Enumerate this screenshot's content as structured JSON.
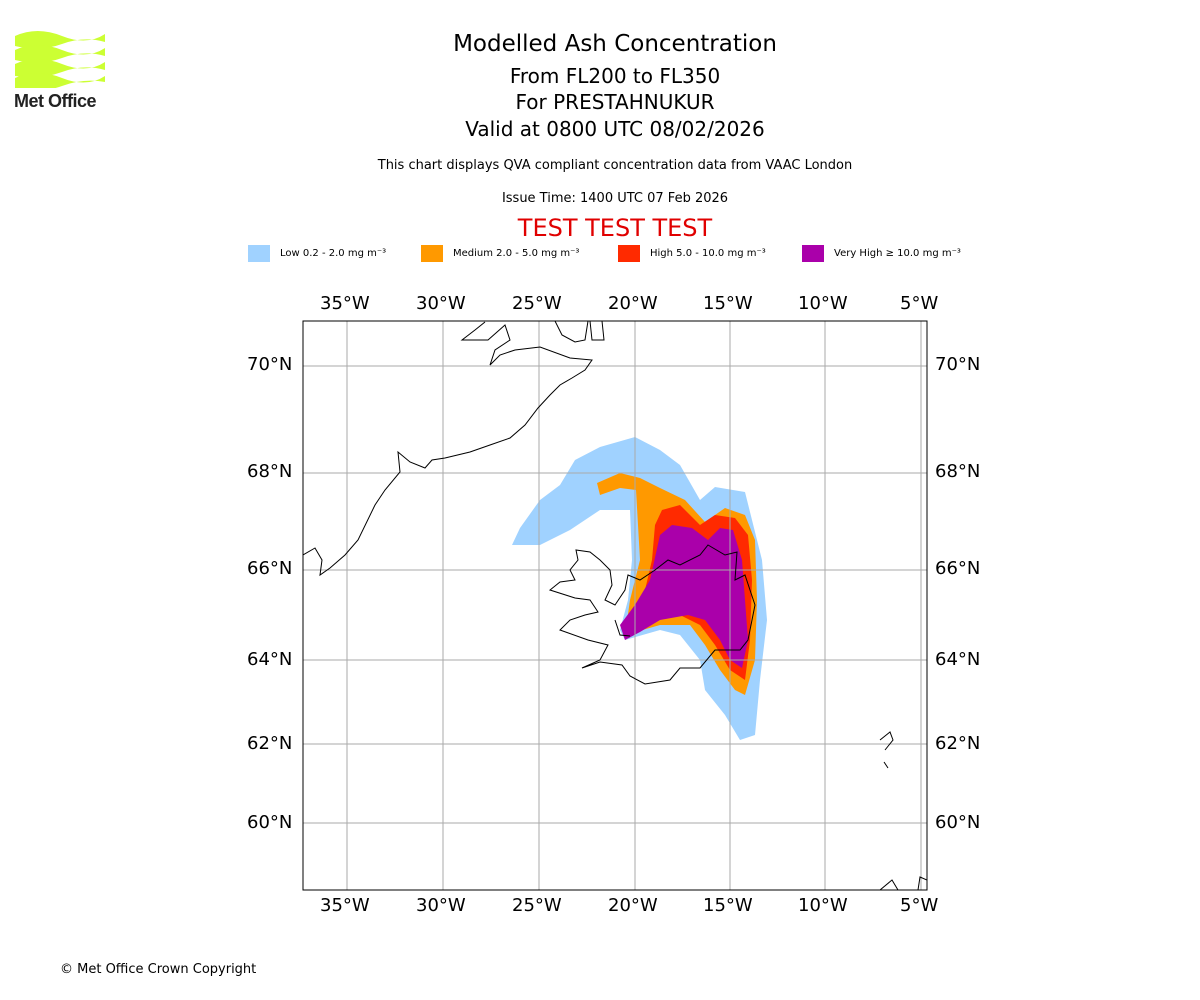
{
  "logo": {
    "text": "Met Office",
    "color": "#ccff33"
  },
  "title": {
    "line1": "Modelled Ash Concentration",
    "line2": "From FL200 to FL350",
    "line3": "For PRESTAHNUKUR",
    "line4": "Valid at 0800 UTC 08/02/2026"
  },
  "subtitle": "This chart displays QVA compliant concentration data from VAAC London",
  "issue_time": "Issue Time: 1400 UTC 07 Feb 2026",
  "test_banner": "TEST TEST TEST",
  "legend": [
    {
      "label": "Low 0.2 - 2.0 mg m⁻³",
      "color": "#a0d2ff"
    },
    {
      "label": "Medium 2.0 - 5.0 mg m⁻³",
      "color": "#ff9900"
    },
    {
      "label": "High 5.0 - 10.0 mg m⁻³",
      "color": "#ff2a00"
    },
    {
      "label": "Very High ≥ 10.0 mg m⁻³",
      "color": "#aa00aa"
    }
  ],
  "map": {
    "lon_labels": [
      "35°W",
      "30°W",
      "25°W",
      "20°W",
      "15°W",
      "10°W",
      "5°W"
    ],
    "lat_labels": [
      "70°N",
      "68°N",
      "66°N",
      "64°N",
      "62°N",
      "60°N"
    ]
  },
  "footer": "© Met Office Crown Copyright"
}
